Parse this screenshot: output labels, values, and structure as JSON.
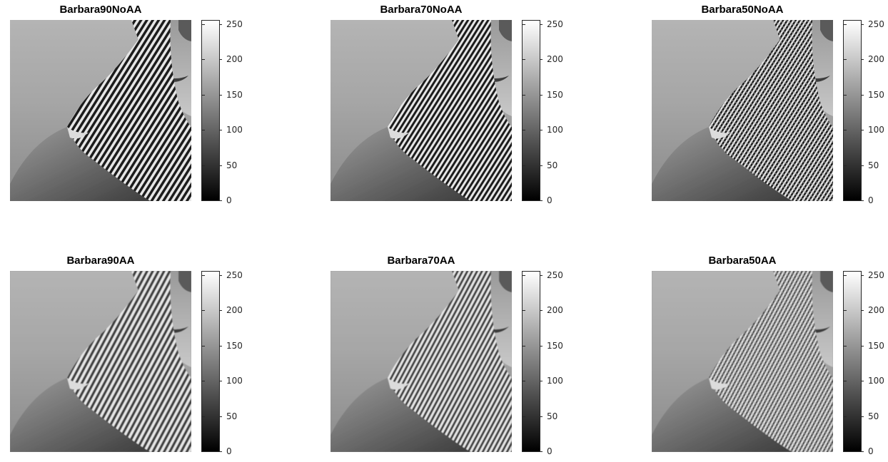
{
  "figure": {
    "panels": [
      {
        "title": "Barbara90NoAA",
        "quality": 90,
        "antialias": false
      },
      {
        "title": "Barbara70NoAA",
        "quality": 70,
        "antialias": false
      },
      {
        "title": "Barbara50NoAA",
        "quality": 50,
        "antialias": false
      },
      {
        "title": "Barbara90AA",
        "quality": 90,
        "antialias": true
      },
      {
        "title": "Barbara70AA",
        "quality": 70,
        "antialias": true
      },
      {
        "title": "Barbara50AA",
        "quality": 50,
        "antialias": true
      }
    ],
    "colorbar": {
      "colormap": "gray",
      "range": [
        0,
        255
      ],
      "ticks": [
        "250",
        "200",
        "150",
        "100",
        "50",
        "0"
      ]
    }
  }
}
